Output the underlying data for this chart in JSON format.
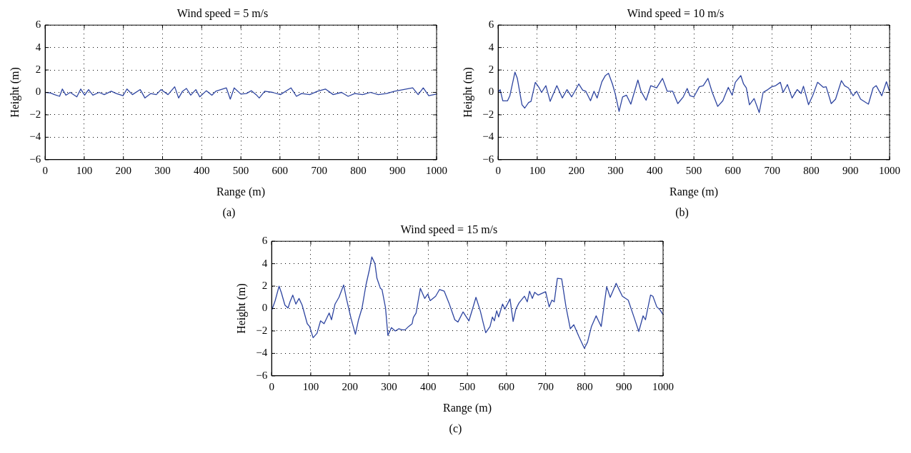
{
  "chart_data": [
    {
      "type": "line",
      "title": "Wind speed = 5 m/s",
      "xlabel": "Range (m)",
      "ylabel": "Height (m)",
      "annotations": [
        "(a)"
      ],
      "xlim": [
        0,
        1000
      ],
      "ylim": [
        -6,
        6
      ],
      "xticks": [
        0,
        100,
        200,
        300,
        400,
        500,
        600,
        700,
        800,
        900,
        1000
      ],
      "yticks": [
        -6,
        -4,
        -2,
        0,
        2,
        4,
        6
      ],
      "grid": true,
      "marker": "none",
      "line_style": "solid",
      "series": [
        {
          "color": "#2e45a0",
          "x": [
            0,
            14,
            24,
            37,
            44,
            53,
            64,
            81,
            91,
            101,
            111,
            122,
            138,
            151,
            169,
            182,
            199,
            209,
            223,
            243,
            255,
            270,
            284,
            296,
            314,
            331,
            341,
            351,
            361,
            372,
            385,
            395,
            412,
            426,
            436,
            463,
            473,
            483,
            500,
            514,
            527,
            539,
            547,
            561,
            581,
            601,
            628,
            642,
            655,
            676,
            696,
            716,
            736,
            757,
            774,
            791,
            811,
            831,
            851,
            872,
            893,
            939,
            953,
            966,
            980,
            1000
          ],
          "values": [
            0,
            -0.05,
            -0.2,
            -0.35,
            0.3,
            -0.25,
            0,
            -0.4,
            0.3,
            -0.25,
            0.25,
            -0.25,
            0,
            -0.2,
            0.1,
            -0.1,
            -0.3,
            0.3,
            -0.2,
            0.25,
            -0.5,
            -0.1,
            -0.2,
            0.25,
            -0.2,
            0.5,
            -0.5,
            0.1,
            0.35,
            -0.25,
            0.25,
            -0.4,
            0.15,
            -0.25,
            0.1,
            0.4,
            -0.6,
            0.4,
            -0.15,
            -0.1,
            0.15,
            -0.2,
            -0.5,
            0.1,
            0,
            -0.2,
            0.4,
            -0.35,
            -0.1,
            -0.2,
            0.1,
            0.3,
            -0.2,
            0,
            -0.35,
            -0.1,
            -0.2,
            0,
            -0.2,
            -0.1,
            0.1,
            0.4,
            -0.2,
            0.4,
            -0.3,
            -0.15
          ]
        }
      ]
    },
    {
      "type": "line",
      "title": "Wind speed = 10 m/s",
      "xlabel": "Range (m)",
      "ylabel": "Height (m)",
      "annotations": [
        "(b)"
      ],
      "xlim": [
        0,
        1000
      ],
      "ylim": [
        -6,
        6
      ],
      "xticks": [
        0,
        100,
        200,
        300,
        400,
        500,
        600,
        700,
        800,
        900,
        1000
      ],
      "yticks": [
        -6,
        -4,
        -2,
        0,
        2,
        4,
        6
      ],
      "grid": true,
      "marker": "none",
      "line_style": "solid",
      "series": [
        {
          "color": "#2e45a0",
          "x": [
            0,
            5,
            12,
            24,
            30,
            43,
            49,
            61,
            68,
            78,
            84,
            95,
            105,
            111,
            122,
            133,
            150,
            164,
            176,
            188,
            206,
            216,
            224,
            236,
            245,
            253,
            265,
            274,
            282,
            292,
            299,
            309,
            318,
            328,
            339,
            357,
            365,
            378,
            390,
            405,
            420,
            432,
            446,
            459,
            473,
            483,
            490,
            500,
            514,
            524,
            536,
            547,
            561,
            574,
            588,
            598,
            606,
            620,
            627,
            634,
            642,
            654,
            667,
            677,
            689,
            699,
            709,
            721,
            728,
            739,
            751,
            764,
            774,
            780,
            793,
            804,
            816,
            831,
            838,
            851,
            862,
            877,
            885,
            895,
            907,
            916,
            926,
            946,
            958,
            966,
            980,
            992,
            1000
          ],
          "values": [
            0,
            0.25,
            -0.75,
            -0.75,
            -0.3,
            1.8,
            1.25,
            -1.1,
            -1.4,
            -0.9,
            -0.8,
            0.9,
            0.4,
            0,
            0.6,
            -0.8,
            0.6,
            -0.5,
            0.25,
            -0.4,
            0.75,
            0.2,
            0.1,
            -0.75,
            0.1,
            -0.5,
            0.95,
            1.5,
            1.7,
            0.75,
            -0.1,
            -1.7,
            -0.4,
            -0.25,
            -1.05,
            1.1,
            0.1,
            -0.7,
            0.6,
            0.4,
            1.25,
            0.1,
            0.1,
            -1,
            -0.4,
            0.35,
            -0.3,
            -0.4,
            0.5,
            0.6,
            1.25,
            0,
            -1.25,
            -0.75,
            0.45,
            -0.25,
            0.9,
            1.5,
            0.75,
            0.4,
            -1.1,
            -0.55,
            -1.8,
            0,
            0.25,
            0.5,
            0.6,
            0.9,
            0,
            0.7,
            -0.5,
            0.25,
            -0.1,
            0.55,
            -1.1,
            -0.25,
            0.9,
            0.45,
            0.5,
            -1,
            -0.6,
            1.05,
            0.6,
            0.4,
            -0.3,
            0.1,
            -0.6,
            -1.05,
            0.4,
            0.6,
            -0.3,
            0.95,
            0.1
          ]
        }
      ]
    },
    {
      "type": "line",
      "title": "Wind speed = 15 m/s",
      "xlabel": "Range (m)",
      "ylabel": "Height (m)",
      "annotations": [
        "(c)"
      ],
      "xlim": [
        0,
        1000
      ],
      "ylim": [
        -6,
        6
      ],
      "xticks": [
        0,
        100,
        200,
        300,
        400,
        500,
        600,
        700,
        800,
        900,
        1000
      ],
      "yticks": [
        -6,
        -4,
        -2,
        0,
        2,
        4,
        6
      ],
      "grid": true,
      "marker": "none",
      "line_style": "solid",
      "series": [
        {
          "color": "#2e45a0",
          "x": [
            0,
            9,
            19,
            25,
            34,
            42,
            47,
            54,
            62,
            70,
            78,
            91,
            97,
            106,
            116,
            125,
            134,
            147,
            153,
            162,
            172,
            184,
            191,
            203,
            214,
            222,
            231,
            241,
            250,
            256,
            264,
            269,
            278,
            282,
            291,
            297,
            306,
            316,
            325,
            334,
            341,
            350,
            359,
            362,
            369,
            380,
            391,
            399,
            405,
            419,
            429,
            441,
            453,
            462,
            468,
            476,
            489,
            504,
            514,
            522,
            533,
            541,
            547,
            558,
            564,
            569,
            575,
            580,
            590,
            596,
            609,
            617,
            624,
            632,
            646,
            653,
            659,
            666,
            672,
            681,
            700,
            709,
            716,
            722,
            730,
            741,
            752,
            763,
            772,
            785,
            793,
            799,
            807,
            817,
            829,
            835,
            842,
            856,
            865,
            873,
            880,
            896,
            911,
            927,
            938,
            949,
            955,
            968,
            974,
            984,
            993,
            1000
          ],
          "values": [
            -0.2,
            0.7,
            2,
            1.4,
            0.3,
            0.05,
            0.6,
            1.2,
            0.4,
            0.9,
            0.3,
            -1.35,
            -1.6,
            -2.6,
            -2.2,
            -1.1,
            -1.35,
            -0.4,
            -1,
            0.4,
            1,
            2.1,
            0.9,
            -0.9,
            -2.3,
            -1,
            0.05,
            2.1,
            3.5,
            4.6,
            4,
            2.7,
            1.8,
            1.7,
            0.05,
            -2.4,
            -1.7,
            -2,
            -1.8,
            -1.9,
            -1.9,
            -1.6,
            -1.35,
            -0.8,
            -0.4,
            1.8,
            0.9,
            1.3,
            0.7,
            1.1,
            1.7,
            1.55,
            0.5,
            -0.4,
            -1,
            -1.2,
            -0.3,
            -1.1,
            0.05,
            1,
            -0.2,
            -1.35,
            -2.15,
            -1.6,
            -0.75,
            -1.1,
            -0.2,
            -0.75,
            0.4,
            -0.05,
            0.85,
            -1.15,
            -0.05,
            0.5,
            1.1,
            0.6,
            1.55,
            0.9,
            1.45,
            1.2,
            1.5,
            0.15,
            0.75,
            0.6,
            2.7,
            2.65,
            0.15,
            -1.8,
            -1.45,
            -2.5,
            -3.1,
            -3.55,
            -3,
            -1.6,
            -0.65,
            -1.1,
            -1.6,
            1.95,
            1,
            1.65,
            2.25,
            1.1,
            0.75,
            -0.9,
            -2.05,
            -0.65,
            -1,
            1.2,
            1.1,
            0.15,
            -0.15,
            -0.55
          ]
        }
      ]
    }
  ]
}
